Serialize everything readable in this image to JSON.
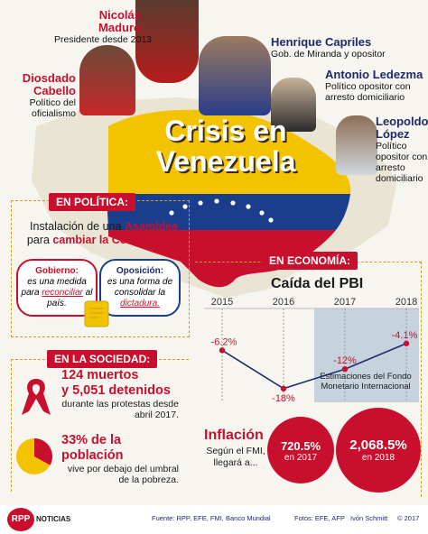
{
  "colors": {
    "red": "#c8102e",
    "dark_red": "#a00d24",
    "yellow": "#f4c300",
    "blue": "#1a3e8c",
    "navy": "#1f2a6b",
    "gold": "#c9a227"
  },
  "header": {
    "title_line1": "Crisis en",
    "title_line2": "Venezuela"
  },
  "people": [
    {
      "name": "Nicolás Maduro",
      "role": "Presidente desde 2013"
    },
    {
      "name": "Henrique Capriles",
      "role": "Gob. de Miranda y opositor"
    },
    {
      "name": "Diosdado Cabello",
      "role": "Político del oficialismo"
    },
    {
      "name": "Antonio Ledezma",
      "role": "Político opositor con arresto domiciliario"
    },
    {
      "name": "Leopoldo López",
      "role": "Político opositor con arresto domiciliario"
    }
  ],
  "politica": {
    "tag": "EN POLÍTICA:",
    "headline_pre": "Instalación de una",
    "headline_bold1": "Asamblea",
    "headline_mid": "para",
    "headline_bold2": "cambiar la Constitución",
    "gobierno_label": "Gobierno:",
    "gobierno_text": "es una medida para",
    "gobierno_emph": "reconciliar",
    "gobierno_tail": "al país.",
    "oposicion_label": "Oposición:",
    "oposicion_text": "es una forma de consolidar la",
    "oposicion_emph": "dictadura."
  },
  "economia": {
    "tag": "EN ECONOMÍA:",
    "chart_title": "Caída del PBI",
    "estimate_note": "Estimaciones del Fondo Monetario Internacional",
    "inflation_title": "Inflación",
    "inflation_desc": "Según el FMI, llegará a...",
    "inflation": [
      {
        "value": "720.5%",
        "label": "en 2017"
      },
      {
        "value": "2,068.5%",
        "label": "en 2018"
      }
    ]
  },
  "chart_data": {
    "type": "line",
    "title": "Caída del PBI",
    "categories": [
      "2015",
      "2016",
      "2017",
      "2018"
    ],
    "values": [
      -6.2,
      -18,
      -12,
      -4.1
    ],
    "labels": [
      "-6.2%",
      "-18%",
      "-12%",
      "-4.1%"
    ],
    "estimated_from": "2017"
  },
  "sociedad": {
    "tag": "EN LA SOCIEDAD:",
    "muertos_line1": "124 muertos",
    "muertos_line2": "y 5,051 detenidos",
    "muertos_desc": "durante las protestas desde abril 2017.",
    "pobreza_line1": "33% de la",
    "pobreza_line2": "población",
    "pobreza_desc": "vive por debajo del umbral de la pobreza.",
    "pobreza_fraction": 0.33
  },
  "footer": {
    "logo": "RPP",
    "logo_sub": "NOTICIAS",
    "sources": "Fuente: RPP, EFE, FMI, Banco Mundial",
    "photos": "Fotos: EFE, AFP",
    "author": "Ivón Schmitt",
    "year": "© 2017"
  }
}
